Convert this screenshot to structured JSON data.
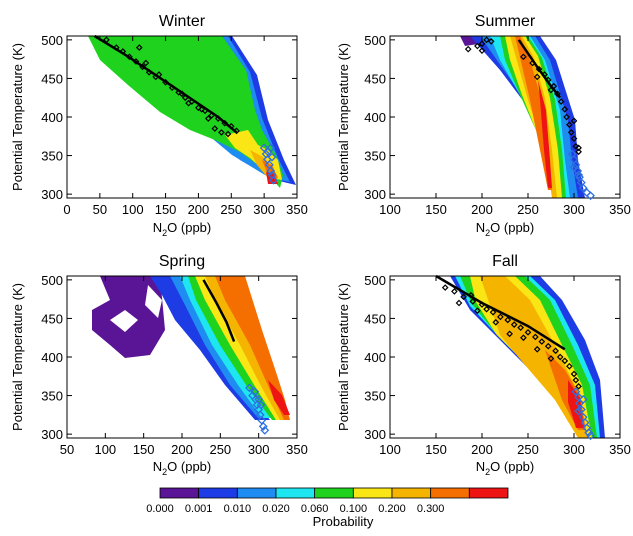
{
  "chart_data": [
    {
      "type": "heatmap",
      "title": "Winter",
      "xlabel": "N2O (ppb)",
      "ylabel": "Potential Temperature (K)",
      "xlim": [
        0,
        350
      ],
      "ylim": [
        295,
        505
      ],
      "xticks": [
        0,
        50,
        100,
        150,
        200,
        250,
        300,
        350
      ],
      "yticks": [
        300,
        350,
        400,
        450,
        500
      ],
      "line": [
        [
          42,
          505
        ],
        [
          90,
          480
        ],
        [
          160,
          440
        ],
        [
          230,
          400
        ],
        [
          258,
          380
        ]
      ],
      "black_points": [
        [
          60,
          500
        ],
        [
          75,
          490
        ],
        [
          85,
          485
        ],
        [
          95,
          478
        ],
        [
          105,
          472
        ],
        [
          115,
          465
        ],
        [
          125,
          458
        ],
        [
          135,
          452
        ],
        [
          150,
          445
        ],
        [
          160,
          438
        ],
        [
          170,
          432
        ],
        [
          180,
          425
        ],
        [
          190,
          420
        ],
        [
          200,
          412
        ],
        [
          210,
          408
        ],
        [
          220,
          402
        ],
        [
          230,
          398
        ],
        [
          240,
          392
        ],
        [
          250,
          388
        ],
        [
          258,
          382
        ],
        [
          175,
          430
        ],
        [
          185,
          418
        ],
        [
          205,
          410
        ],
        [
          215,
          398
        ],
        [
          225,
          385
        ],
        [
          235,
          380
        ],
        [
          245,
          378
        ],
        [
          110,
          490
        ],
        [
          120,
          470
        ],
        [
          140,
          455
        ]
      ],
      "blue_points": [
        [
          300,
          360
        ],
        [
          303,
          352
        ],
        [
          305,
          345
        ],
        [
          308,
          338
        ],
        [
          310,
          330
        ],
        [
          312,
          325
        ],
        [
          314,
          318
        ],
        [
          306,
          355
        ],
        [
          310,
          360
        ],
        [
          312,
          348
        ]
      ]
    },
    {
      "type": "heatmap",
      "title": "Summer",
      "xlabel": "N2O (ppb)",
      "ylabel": "Potential Temperature (K)",
      "xlim": [
        100,
        350
      ],
      "ylim": [
        295,
        505
      ],
      "xticks": [
        100,
        150,
        200,
        250,
        300,
        350
      ],
      "yticks": [
        300,
        350,
        400,
        450,
        500
      ],
      "line": [
        [
          240,
          500
        ],
        [
          260,
          465
        ],
        [
          275,
          440
        ],
        [
          285,
          425
        ]
      ],
      "black_points": [
        [
          185,
          488
        ],
        [
          195,
          492
        ],
        [
          200,
          495
        ],
        [
          205,
          500
        ],
        [
          210,
          498
        ],
        [
          200,
          486
        ],
        [
          245,
          478
        ],
        [
          255,
          470
        ],
        [
          262,
          462
        ],
        [
          268,
          455
        ],
        [
          272,
          448
        ],
        [
          278,
          440
        ],
        [
          282,
          430
        ],
        [
          286,
          420
        ],
        [
          290,
          410
        ],
        [
          292,
          400
        ],
        [
          295,
          390
        ],
        [
          297,
          380
        ],
        [
          300,
          372
        ],
        [
          302,
          362
        ],
        [
          305,
          355
        ],
        [
          260,
          452
        ],
        [
          275,
          435
        ],
        [
          300,
          395
        ],
        [
          305,
          360
        ]
      ],
      "blue_points": [
        [
          298,
          352
        ],
        [
          300,
          345
        ],
        [
          302,
          338
        ],
        [
          304,
          330
        ],
        [
          306,
          322
        ],
        [
          308,
          315
        ],
        [
          310,
          308
        ],
        [
          314,
          302
        ],
        [
          318,
          298
        ],
        [
          300,
          335
        ],
        [
          305,
          325
        ]
      ]
    },
    {
      "type": "heatmap",
      "title": "Spring",
      "xlabel": "N2O (ppb)",
      "ylabel": "Potential Temperature (K)",
      "xlim": [
        50,
        350
      ],
      "ylim": [
        295,
        505
      ],
      "xticks": [
        50,
        100,
        150,
        200,
        250,
        300,
        350
      ],
      "yticks": [
        300,
        350,
        400,
        450,
        500
      ],
      "line": [
        [
          228,
          500
        ],
        [
          245,
          470
        ],
        [
          258,
          445
        ],
        [
          268,
          420
        ]
      ],
      "black_points": [],
      "blue_points": [
        [
          288,
          360
        ],
        [
          292,
          350
        ],
        [
          296,
          345
        ],
        [
          298,
          338
        ],
        [
          300,
          332
        ],
        [
          302,
          325
        ],
        [
          304,
          318
        ],
        [
          306,
          310
        ],
        [
          308,
          305
        ],
        [
          295,
          355
        ],
        [
          300,
          345
        ],
        [
          303,
          338
        ]
      ]
    },
    {
      "type": "heatmap",
      "title": "Fall",
      "xlabel": "N2O (ppb)",
      "ylabel": "Potential Temperature (K)",
      "xlim": [
        100,
        350
      ],
      "ylim": [
        295,
        505
      ],
      "xticks": [
        100,
        150,
        200,
        250,
        300,
        350
      ],
      "yticks": [
        300,
        350,
        400,
        450,
        500
      ],
      "line": [
        [
          150,
          505
        ],
        [
          200,
          470
        ],
        [
          250,
          440
        ],
        [
          290,
          410
        ]
      ],
      "black_points": [
        [
          160,
          490
        ],
        [
          170,
          485
        ],
        [
          180,
          478
        ],
        [
          190,
          472
        ],
        [
          200,
          468
        ],
        [
          205,
          462
        ],
        [
          212,
          458
        ],
        [
          220,
          452
        ],
        [
          228,
          448
        ],
        [
          235,
          442
        ],
        [
          242,
          438
        ],
        [
          250,
          432
        ],
        [
          258,
          426
        ],
        [
          265,
          420
        ],
        [
          272,
          414
        ],
        [
          280,
          408
        ],
        [
          285,
          400
        ],
        [
          290,
          395
        ],
        [
          295,
          388
        ],
        [
          300,
          378
        ],
        [
          302,
          370
        ],
        [
          305,
          362
        ],
        [
          175,
          470
        ],
        [
          195,
          460
        ],
        [
          215,
          445
        ],
        [
          230,
          430
        ],
        [
          245,
          425
        ],
        [
          260,
          410
        ],
        [
          275,
          398
        ],
        [
          188,
          480
        ]
      ],
      "blue_points": [
        [
          302,
          355
        ],
        [
          305,
          348
        ],
        [
          306,
          340
        ],
        [
          308,
          332
        ],
        [
          310,
          322
        ],
        [
          312,
          315
        ],
        [
          314,
          308
        ],
        [
          316,
          302
        ],
        [
          318,
          298
        ],
        [
          310,
          345
        ],
        [
          305,
          330
        ]
      ]
    }
  ],
  "colorbar": {
    "label": "Probability",
    "ticks": [
      "0.000",
      "0.001",
      "0.010",
      "0.020",
      "0.060",
      "0.100",
      "0.200",
      "0.300"
    ],
    "colors": [
      "#5a1496",
      "#1e3ce6",
      "#1e8cf0",
      "#1ee6f0",
      "#1ed21e",
      "#fae614",
      "#f5b400",
      "#f56e00",
      "#ee1414"
    ]
  }
}
